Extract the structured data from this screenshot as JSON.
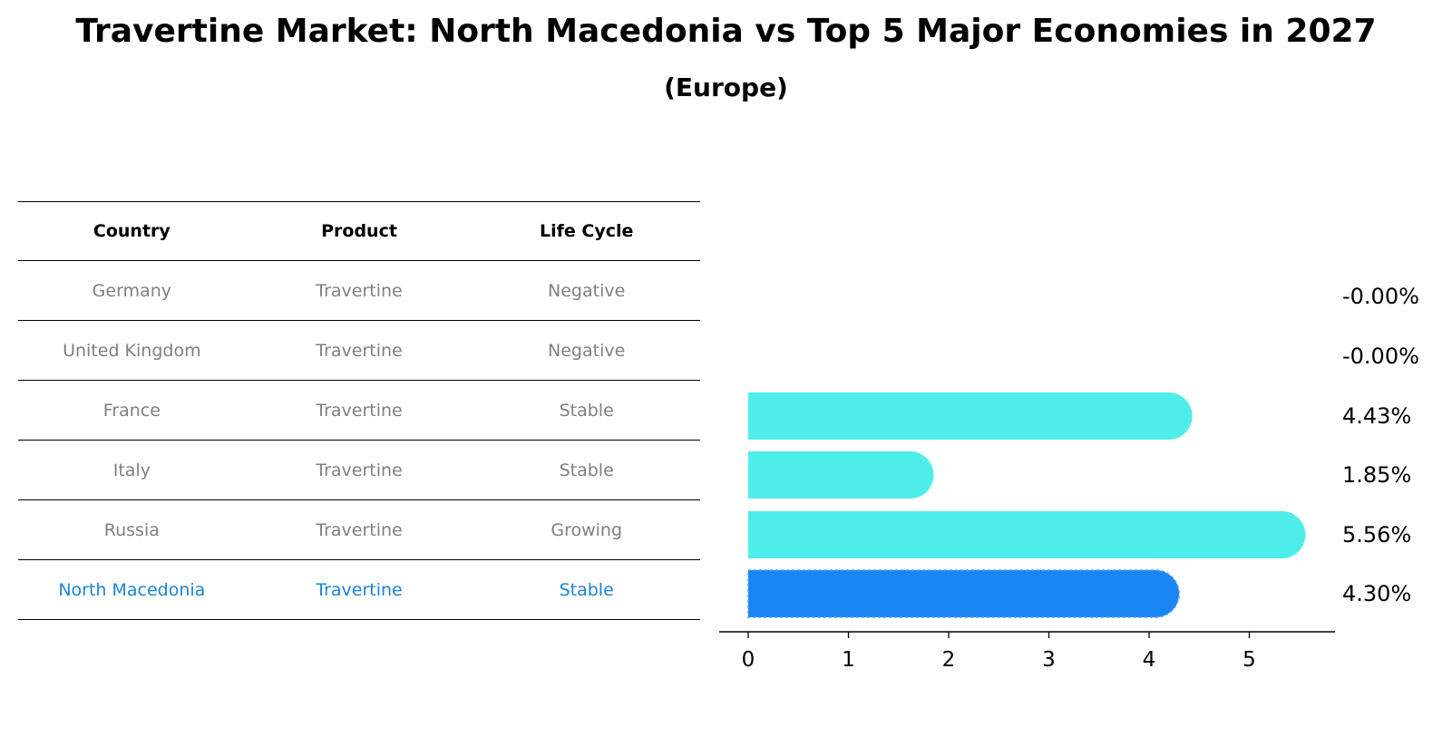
{
  "title": "Travertine Market: North Macedonia vs Top 5 Major Economies in 2027",
  "subtitle": "(Europe)",
  "table": {
    "headers": [
      "Country",
      "Product",
      "Life Cycle"
    ],
    "rows": [
      {
        "country": "Germany",
        "product": "Travertine",
        "life_cycle": "Negative"
      },
      {
        "country": "United Kingdom",
        "product": "Travertine",
        "life_cycle": "Negative"
      },
      {
        "country": "France",
        "product": "Travertine",
        "life_cycle": "Stable"
      },
      {
        "country": "Italy",
        "product": "Travertine",
        "life_cycle": "Stable"
      },
      {
        "country": "Russia",
        "product": "Travertine",
        "life_cycle": "Growing"
      },
      {
        "country": "North Macedonia",
        "product": "Travertine",
        "life_cycle": "Stable"
      }
    ]
  },
  "colors": {
    "bar": "#4deeea",
    "highlight_bar": "#1a86f4",
    "highlight_text": "#1d83d4",
    "muted_text": "#808080"
  },
  "chart_data": {
    "type": "bar",
    "orientation": "horizontal",
    "categories": [
      "Germany",
      "United Kingdom",
      "France",
      "Italy",
      "Russia",
      "North Macedonia"
    ],
    "values": [
      0.0,
      0.0,
      4.43,
      1.85,
      5.56,
      4.3
    ],
    "value_labels": [
      "-0.00%",
      "-0.00%",
      "4.43%",
      "1.85%",
      "5.56%",
      "4.30%"
    ],
    "highlight_index": 5,
    "xticks": [
      "0",
      "1",
      "2",
      "3",
      "4",
      "5"
    ],
    "xlim": [
      0,
      5.56
    ]
  }
}
